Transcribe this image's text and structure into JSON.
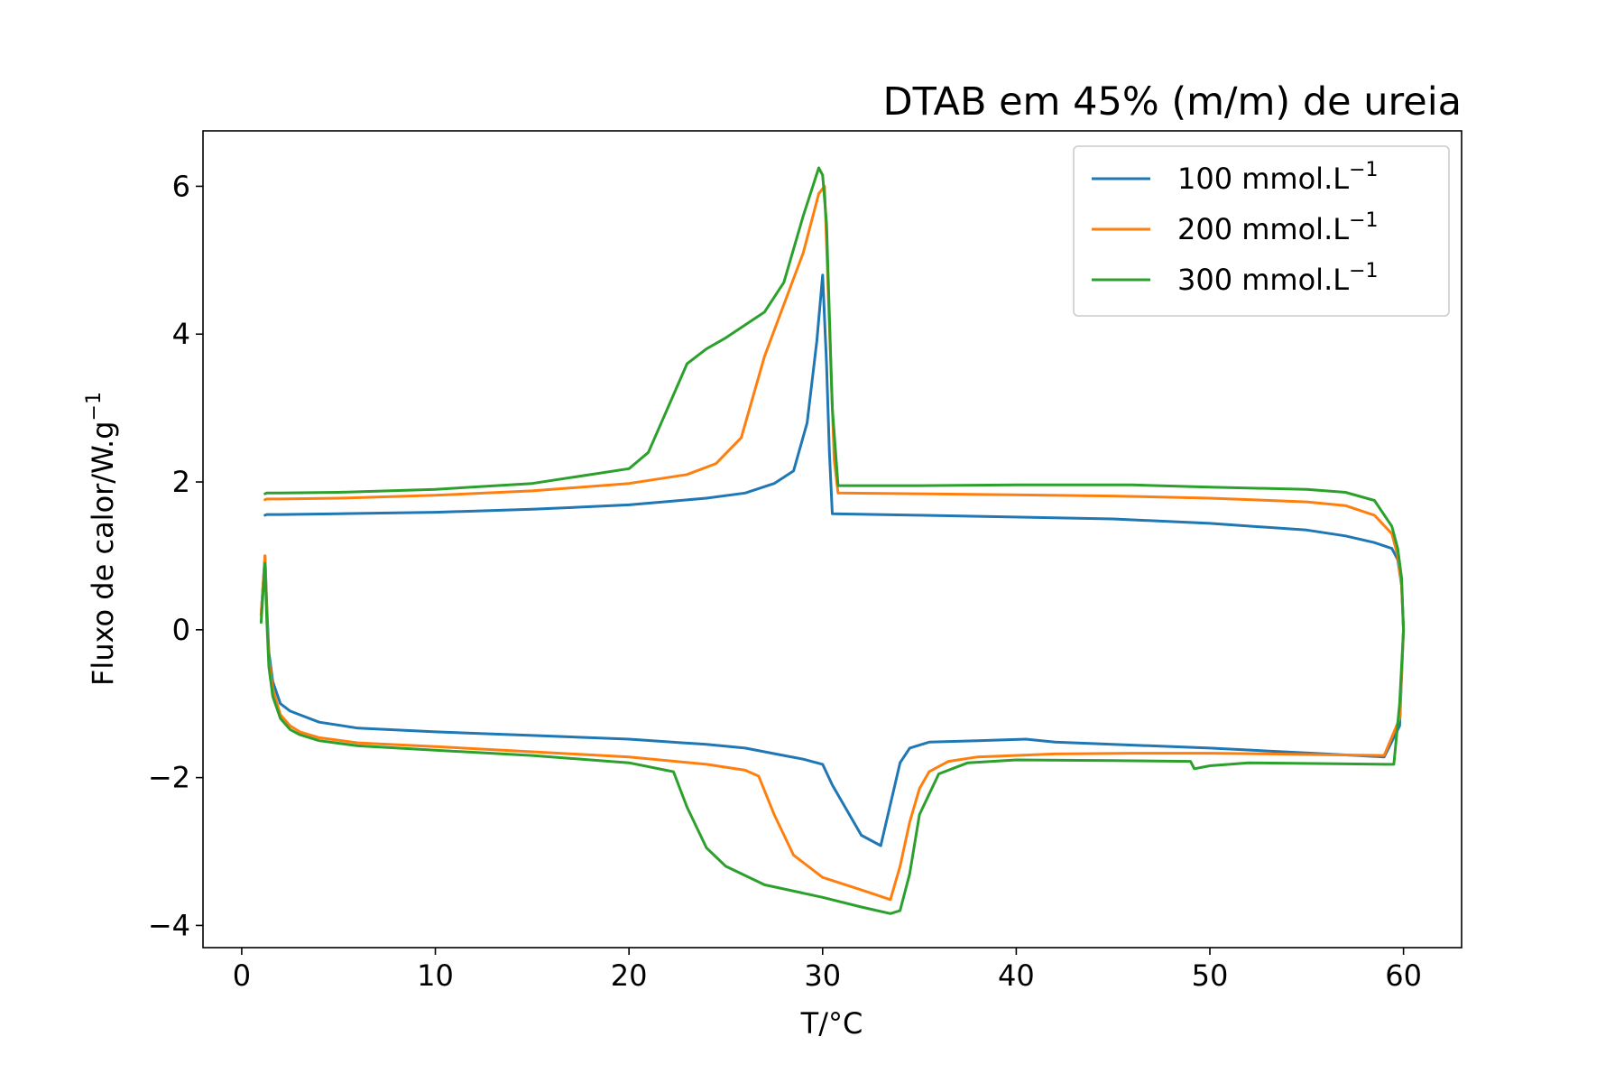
{
  "chart_data": {
    "type": "line",
    "title": "DTAB em 45% (m/m) de ureia",
    "xlabel": "T/°C",
    "ylabel": {
      "base": "Fluxo de calor/W.g",
      "sup": "−1"
    },
    "xlim": [
      -2,
      63
    ],
    "ylim": [
      -4.3,
      6.75
    ],
    "xticks": [
      0,
      10,
      20,
      30,
      40,
      50,
      60
    ],
    "yticks": [
      -4,
      -2,
      0,
      2,
      4,
      6
    ],
    "xtick_labels": [
      "0",
      "10",
      "20",
      "30",
      "40",
      "50",
      "60"
    ],
    "ytick_labels": [
      "−4",
      "−2",
      "0",
      "2",
      "4",
      "6"
    ],
    "grid": false,
    "legend_position": "top-right",
    "series": [
      {
        "name": "100 mmol.L",
        "name_sup": "−1",
        "color": "#1f77b4",
        "x": [
          1.0,
          1.2,
          1.3,
          1.4,
          1.6,
          2.0,
          2.5,
          3.0,
          4.0,
          6.0,
          10.0,
          15.0,
          20.0,
          24.0,
          26.0,
          28.0,
          29.0,
          30.0,
          30.5,
          32.0,
          33.0,
          33.6,
          34.0,
          34.5,
          35.5,
          38.0,
          40.5,
          42.0,
          46.0,
          50.0,
          56.0,
          59.0,
          59.8,
          60.0,
          59.9,
          59.7,
          59.4,
          58.5,
          57.0,
          55.0,
          50.0,
          45.0,
          35.0,
          30.5,
          30.35,
          30.2,
          30.0,
          29.7,
          29.2,
          28.5,
          27.5,
          26.0,
          24.0,
          20.0,
          15.0,
          10.0,
          5.0,
          2.0,
          1.3,
          1.2
        ],
        "y": [
          0.2,
          1.0,
          0.3,
          -0.3,
          -0.7,
          -1.0,
          -1.1,
          -1.15,
          -1.25,
          -1.33,
          -1.38,
          -1.43,
          -1.48,
          -1.55,
          -1.6,
          -1.7,
          -1.75,
          -1.82,
          -2.1,
          -2.78,
          -2.92,
          -2.25,
          -1.8,
          -1.6,
          -1.52,
          -1.5,
          -1.48,
          -1.52,
          -1.56,
          -1.6,
          -1.68,
          -1.72,
          -1.3,
          0.0,
          0.6,
          0.95,
          1.1,
          1.18,
          1.27,
          1.35,
          1.44,
          1.5,
          1.55,
          1.57,
          2.4,
          3.6,
          4.8,
          3.9,
          2.8,
          2.15,
          1.98,
          1.85,
          1.78,
          1.69,
          1.63,
          1.59,
          1.57,
          1.56,
          1.56,
          1.55
        ]
      },
      {
        "name": "200 mmol.L",
        "name_sup": "−1",
        "color": "#ff7f0e",
        "x": [
          1.0,
          1.2,
          1.3,
          1.4,
          1.6,
          2.0,
          2.5,
          3.0,
          4.0,
          6.0,
          10.0,
          15.0,
          20.0,
          24.0,
          26.0,
          26.7,
          27.5,
          28.5,
          30.0,
          32.0,
          33.5,
          34.0,
          34.5,
          35.0,
          35.5,
          36.5,
          38.0,
          42.0,
          46.0,
          50.0,
          56.0,
          59.0,
          59.8,
          60.0,
          59.9,
          59.7,
          59.4,
          58.5,
          57.0,
          55.0,
          50.0,
          45.0,
          35.0,
          30.8,
          30.6,
          30.3,
          30.1,
          29.8,
          29.0,
          28.0,
          27.0,
          25.8,
          24.5,
          23.0,
          20.0,
          15.0,
          10.0,
          5.0,
          2.0,
          1.3,
          1.2
        ],
        "y": [
          0.2,
          1.0,
          0.2,
          -0.4,
          -0.8,
          -1.15,
          -1.3,
          -1.38,
          -1.46,
          -1.53,
          -1.58,
          -1.65,
          -1.72,
          -1.82,
          -1.9,
          -1.98,
          -2.5,
          -3.05,
          -3.35,
          -3.52,
          -3.65,
          -3.2,
          -2.6,
          -2.15,
          -1.92,
          -1.78,
          -1.72,
          -1.68,
          -1.67,
          -1.67,
          -1.69,
          -1.7,
          -1.2,
          0.0,
          0.6,
          1.0,
          1.3,
          1.55,
          1.68,
          1.73,
          1.78,
          1.81,
          1.84,
          1.85,
          2.3,
          4.5,
          6.0,
          5.9,
          5.1,
          4.4,
          3.7,
          2.6,
          2.25,
          2.1,
          1.98,
          1.88,
          1.82,
          1.78,
          1.77,
          1.77,
          1.76
        ]
      },
      {
        "name": "300 mmol.L",
        "name_sup": "−1",
        "color": "#2ca02c",
        "x": [
          1.0,
          1.2,
          1.3,
          1.4,
          1.6,
          2.0,
          2.5,
          3.0,
          4.0,
          6.0,
          10.0,
          15.0,
          20.0,
          22.3,
          23.0,
          24.0,
          25.0,
          27.0,
          30.0,
          32.0,
          33.5,
          34.0,
          34.5,
          35.0,
          36.0,
          37.5,
          40.0,
          45.0,
          49.0,
          49.2,
          50.0,
          52.0,
          56.0,
          59.0,
          59.5,
          59.8,
          60.0,
          59.9,
          59.7,
          59.4,
          58.5,
          57.0,
          55.0,
          50.0,
          46.0,
          40.0,
          35.0,
          30.8,
          30.5,
          30.2,
          30.0,
          29.8,
          29.0,
          28.0,
          27.0,
          25.0,
          24.0,
          23.0,
          22.0,
          21.0,
          20.0,
          15.0,
          10.0,
          5.0,
          2.0,
          1.3,
          1.2
        ],
        "y": [
          0.1,
          0.9,
          0.1,
          -0.5,
          -0.9,
          -1.2,
          -1.35,
          -1.42,
          -1.5,
          -1.57,
          -1.63,
          -1.7,
          -1.8,
          -1.92,
          -2.4,
          -2.95,
          -3.2,
          -3.45,
          -3.62,
          -3.75,
          -3.84,
          -3.8,
          -3.3,
          -2.5,
          -1.95,
          -1.8,
          -1.76,
          -1.77,
          -1.78,
          -1.88,
          -1.84,
          -1.8,
          -1.81,
          -1.82,
          -1.82,
          -1.0,
          0.0,
          0.7,
          1.1,
          1.4,
          1.75,
          1.86,
          1.9,
          1.93,
          1.96,
          1.96,
          1.95,
          1.95,
          3.0,
          5.5,
          6.15,
          6.25,
          5.6,
          4.7,
          4.3,
          3.95,
          3.8,
          3.6,
          3.0,
          2.4,
          2.18,
          1.98,
          1.9,
          1.86,
          1.85,
          1.85,
          1.84
        ]
      }
    ]
  }
}
